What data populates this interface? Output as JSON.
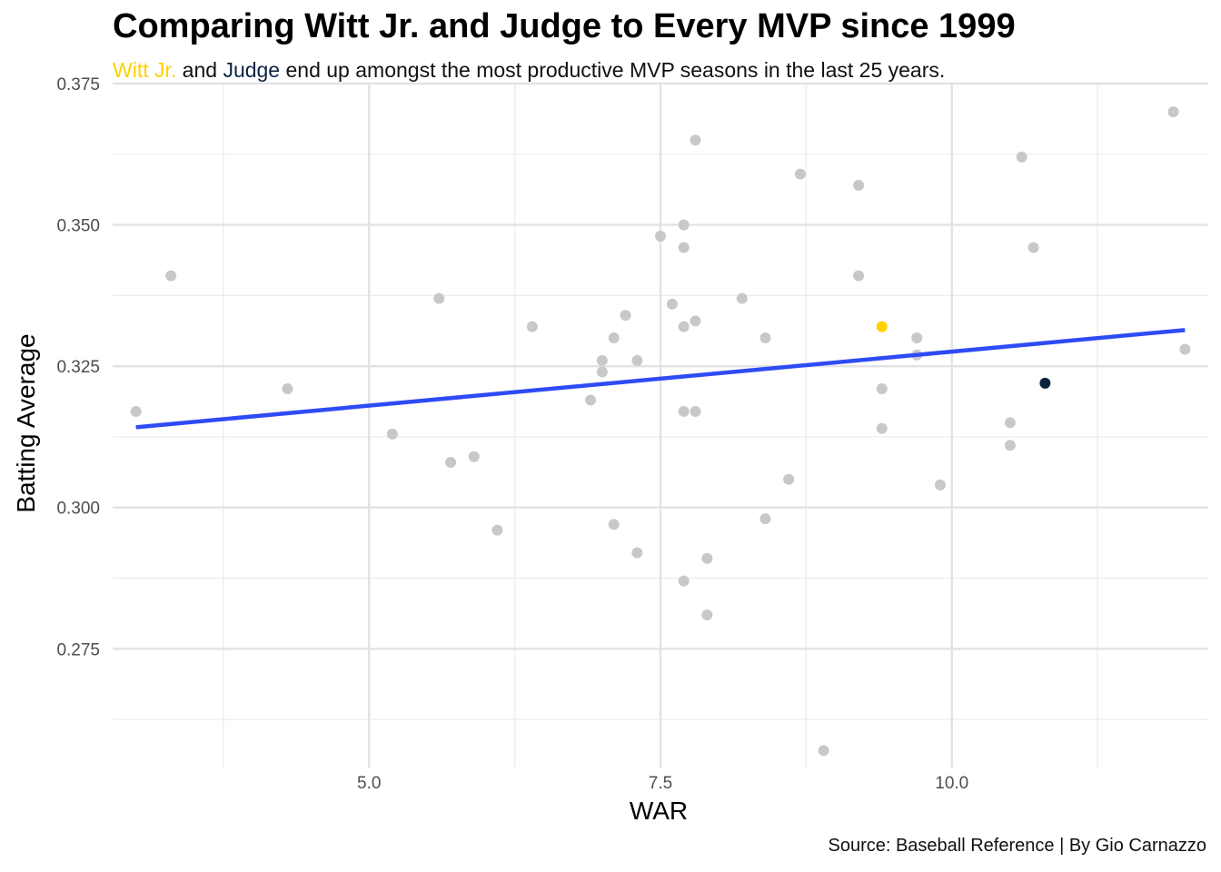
{
  "title": "Comparing Witt Jr. and Judge to Every MVP since 1999",
  "subtitle": {
    "witt": "Witt Jr.",
    "and": " and ",
    "judge": "Judge",
    "rest": " end up amongst the most productive MVP seasons in the last 25 years."
  },
  "caption": "Source: Baseball Reference | By Gio Carnazzo",
  "colors": {
    "witt": "#FFD100",
    "judge": "#0C2340",
    "other": "#C8C8C8",
    "trend": "#2E4BF5"
  },
  "chart_data": {
    "type": "scatter",
    "xlabel": "WAR",
    "ylabel": "Batting Average",
    "xlim": [
      2.8,
      12.2
    ],
    "ylim": [
      0.254,
      0.375
    ],
    "x_ticks": [
      "5.0",
      "7.5",
      "10.0"
    ],
    "x_tick_values": [
      5.0,
      7.5,
      10.0
    ],
    "y_ticks": [
      "0.275",
      "0.300",
      "0.325",
      "0.350",
      "0.375"
    ],
    "y_tick_values": [
      0.275,
      0.3,
      0.325,
      0.35,
      0.375
    ],
    "grid": true,
    "points": [
      {
        "x": 3.0,
        "y": 0.317
      },
      {
        "x": 3.3,
        "y": 0.341
      },
      {
        "x": 4.3,
        "y": 0.321
      },
      {
        "x": 5.2,
        "y": 0.313
      },
      {
        "x": 5.6,
        "y": 0.337
      },
      {
        "x": 5.7,
        "y": 0.308
      },
      {
        "x": 5.9,
        "y": 0.309
      },
      {
        "x": 6.1,
        "y": 0.296
      },
      {
        "x": 6.4,
        "y": 0.332
      },
      {
        "x": 6.9,
        "y": 0.319
      },
      {
        "x": 7.0,
        "y": 0.326
      },
      {
        "x": 7.0,
        "y": 0.324
      },
      {
        "x": 7.1,
        "y": 0.33
      },
      {
        "x": 7.1,
        "y": 0.297
      },
      {
        "x": 7.2,
        "y": 0.334
      },
      {
        "x": 7.3,
        "y": 0.326
      },
      {
        "x": 7.3,
        "y": 0.292
      },
      {
        "x": 7.5,
        "y": 0.348
      },
      {
        "x": 7.6,
        "y": 0.336
      },
      {
        "x": 7.7,
        "y": 0.35
      },
      {
        "x": 7.7,
        "y": 0.346
      },
      {
        "x": 7.7,
        "y": 0.332
      },
      {
        "x": 7.7,
        "y": 0.317
      },
      {
        "x": 7.7,
        "y": 0.287
      },
      {
        "x": 7.8,
        "y": 0.365
      },
      {
        "x": 7.8,
        "y": 0.333
      },
      {
        "x": 7.8,
        "y": 0.317
      },
      {
        "x": 7.9,
        "y": 0.291
      },
      {
        "x": 7.9,
        "y": 0.281
      },
      {
        "x": 8.2,
        "y": 0.337
      },
      {
        "x": 8.4,
        "y": 0.33
      },
      {
        "x": 8.4,
        "y": 0.298
      },
      {
        "x": 8.6,
        "y": 0.305
      },
      {
        "x": 8.7,
        "y": 0.359
      },
      {
        "x": 8.9,
        "y": 0.257
      },
      {
        "x": 9.2,
        "y": 0.357
      },
      {
        "x": 9.2,
        "y": 0.341
      },
      {
        "x": 9.4,
        "y": 0.321
      },
      {
        "x": 9.4,
        "y": 0.314
      },
      {
        "x": 9.7,
        "y": 0.33
      },
      {
        "x": 9.7,
        "y": 0.327
      },
      {
        "x": 9.9,
        "y": 0.304
      },
      {
        "x": 10.5,
        "y": 0.315
      },
      {
        "x": 10.5,
        "y": 0.311
      },
      {
        "x": 10.6,
        "y": 0.362
      },
      {
        "x": 10.7,
        "y": 0.346
      },
      {
        "x": 11.9,
        "y": 0.37
      },
      {
        "x": 12.0,
        "y": 0.328
      }
    ],
    "highlights": [
      {
        "name": "Witt Jr.",
        "x": 9.4,
        "y": 0.332,
        "color": "#FFD100"
      },
      {
        "name": "Judge",
        "x": 10.8,
        "y": 0.322,
        "color": "#0C2340"
      }
    ],
    "trend_line": {
      "x": [
        3.0,
        12.0
      ],
      "y": [
        0.3142,
        0.3314
      ]
    }
  }
}
